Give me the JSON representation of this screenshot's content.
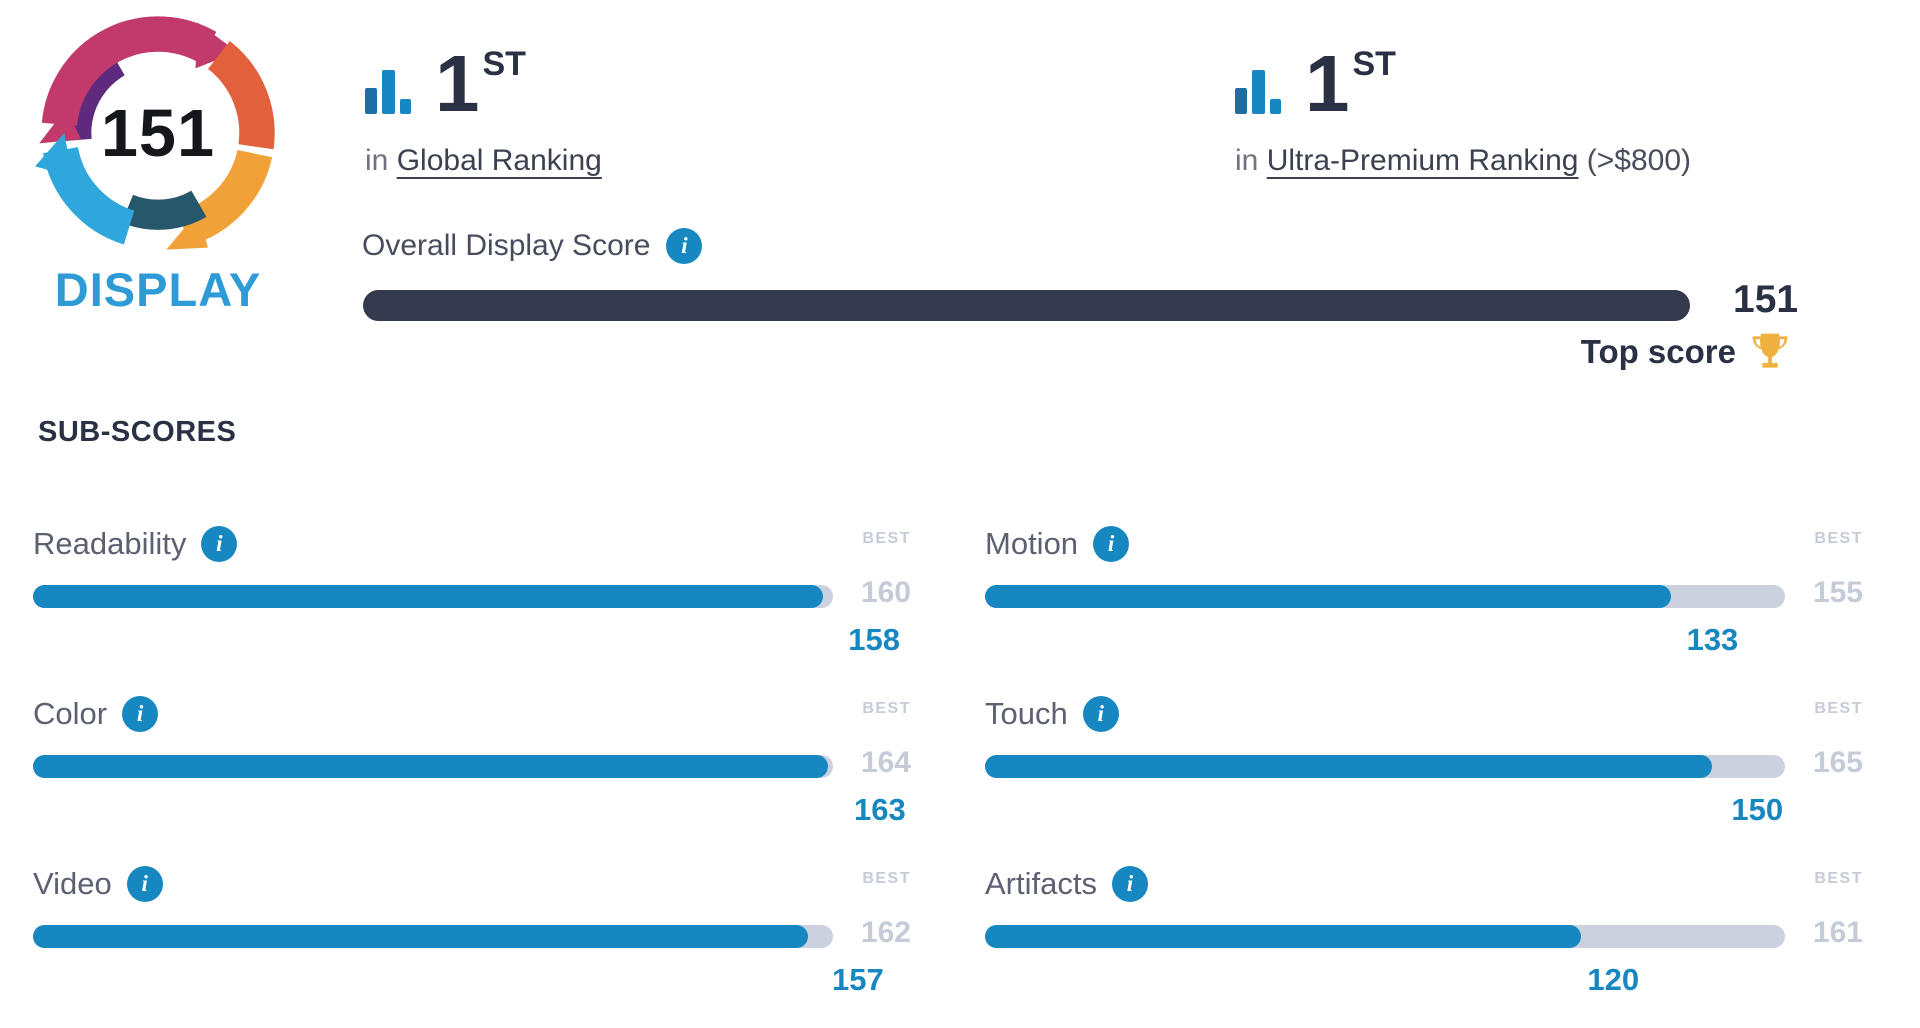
{
  "logo": {
    "score": "151",
    "label": "DISPLAY"
  },
  "rankings": [
    {
      "rank": "1",
      "suffix": "ST",
      "prefix": "in",
      "link_text": "Global Ranking",
      "note": ""
    },
    {
      "rank": "1",
      "suffix": "ST",
      "prefix": "in",
      "link_text": "Ultra-Premium Ranking",
      "note": "(>$800)"
    }
  ],
  "overall": {
    "label": "Overall Display Score",
    "value": "151",
    "top_score_label": "Top score"
  },
  "subscores_heading": "SUB-SCORES",
  "best_label": "BEST",
  "subscores": [
    {
      "name": "Readability",
      "value": "158",
      "best": "160",
      "pct": 98.75
    },
    {
      "name": "Motion",
      "value": "133",
      "best": "155",
      "pct": 85.8
    },
    {
      "name": "Color",
      "value": "163",
      "best": "164",
      "pct": 99.4
    },
    {
      "name": "Touch",
      "value": "150",
      "best": "165",
      "pct": 90.9
    },
    {
      "name": "Video",
      "value": "157",
      "best": "162",
      "pct": 96.9
    },
    {
      "name": "Artifacts",
      "value": "120",
      "best": "161",
      "pct": 74.5
    }
  ],
  "icons": {
    "info_glyph": "i"
  },
  "chart_data": {
    "type": "bar",
    "title": "Overall Display Score",
    "overall_score": 151,
    "overall_max": 151,
    "rank_global": "1st in Global Ranking",
    "rank_segment": "1st in Ultra-Premium Ranking (>$800)",
    "top_score": true,
    "categories": [
      "Readability",
      "Motion",
      "Color",
      "Touch",
      "Video",
      "Artifacts"
    ],
    "series": [
      {
        "name": "score",
        "values": [
          158,
          133,
          163,
          150,
          157,
          120
        ]
      },
      {
        "name": "best",
        "values": [
          160,
          155,
          164,
          165,
          162,
          161
        ]
      }
    ],
    "legend_position": "none",
    "grid": false
  },
  "colors": {
    "accent_blue": "#1787c1",
    "track_gray": "#cbd1de",
    "muted_gray": "#c6cbd8",
    "navy_text": "#2b3144",
    "overall_bar": "#333a4d",
    "label_gray": "#5d6070",
    "display_blue": "#2e9bd6",
    "trophy_gold": "#f0b23e",
    "logo_magenta": "#c23a6b",
    "logo_purple": "#5f2a7d",
    "logo_orange": "#e2603c",
    "logo_amber": "#f0a137",
    "logo_sky": "#2fa7dc",
    "logo_teal": "#27576b"
  }
}
